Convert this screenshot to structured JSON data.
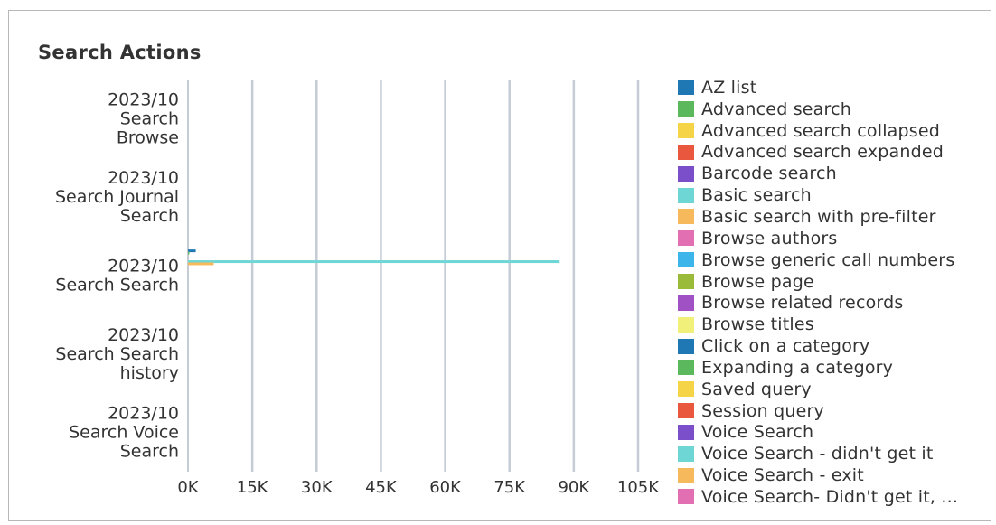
{
  "chart_data": {
    "type": "bar",
    "orientation": "horizontal",
    "title": "Search Actions",
    "categories": [
      [
        "2023/10",
        "Search",
        "Browse"
      ],
      [
        "2023/10",
        "Search Journal",
        "Search"
      ],
      [
        "2023/10",
        "Search Search"
      ],
      [
        "2023/10",
        "Search Search",
        "history"
      ],
      [
        "2023/10",
        "Search Voice",
        "Search"
      ]
    ],
    "xlim": [
      0,
      105000
    ],
    "x_ticks": [
      {
        "value": 0,
        "label": "0K"
      },
      {
        "value": 15000,
        "label": "15K"
      },
      {
        "value": 30000,
        "label": "30K"
      },
      {
        "value": 45000,
        "label": "45K"
      },
      {
        "value": 60000,
        "label": "60K"
      },
      {
        "value": 75000,
        "label": "75K"
      },
      {
        "value": 90000,
        "label": "90K"
      },
      {
        "value": 105000,
        "label": "105K"
      }
    ],
    "grid": true,
    "legend_position": "right",
    "series": [
      {
        "name": "AZ list",
        "color": "#1f77b4",
        "values": [
          0,
          0,
          1800,
          0,
          0
        ]
      },
      {
        "name": "Advanced search",
        "color": "#5cb85c",
        "values": [
          0,
          0,
          300,
          0,
          0
        ]
      },
      {
        "name": "Advanced search collapsed",
        "color": "#f5d547",
        "values": [
          0,
          0,
          0,
          0,
          0
        ]
      },
      {
        "name": "Advanced search expanded",
        "color": "#e8573e",
        "values": [
          0,
          0,
          0,
          0,
          0
        ]
      },
      {
        "name": "Barcode search",
        "color": "#7b4fc9",
        "values": [
          0,
          0,
          0,
          0,
          0
        ]
      },
      {
        "name": "Basic search",
        "color": "#6fd6d6",
        "values": [
          0,
          0,
          86700,
          0,
          0
        ]
      },
      {
        "name": "Basic search with pre-filter",
        "color": "#f6b95b",
        "values": [
          0,
          0,
          6000,
          0,
          0
        ]
      },
      {
        "name": "Browse authors",
        "color": "#e36fb3",
        "values": [
          0,
          0,
          0,
          0,
          0
        ]
      },
      {
        "name": "Browse generic call numbers",
        "color": "#3bb5ea",
        "values": [
          0,
          0,
          0,
          0,
          0
        ]
      },
      {
        "name": "Browse page",
        "color": "#9abb3a",
        "values": [
          0,
          0,
          0,
          0,
          0
        ]
      },
      {
        "name": "Browse related records",
        "color": "#a052c4",
        "values": [
          0,
          0,
          0,
          0,
          0
        ]
      },
      {
        "name": "Browse titles",
        "color": "#f0f07a",
        "values": [
          0,
          0,
          0,
          0,
          0
        ]
      },
      {
        "name": "Click on a category",
        "color": "#1f77b4",
        "values": [
          0,
          0,
          0,
          0,
          0
        ]
      },
      {
        "name": "Expanding a category",
        "color": "#5cb85c",
        "values": [
          0,
          0,
          0,
          0,
          0
        ]
      },
      {
        "name": "Saved query",
        "color": "#f5d547",
        "values": [
          0,
          0,
          0,
          0,
          0
        ]
      },
      {
        "name": "Session query",
        "color": "#e8573e",
        "values": [
          0,
          0,
          0,
          0,
          0
        ]
      },
      {
        "name": "Voice Search",
        "color": "#7b4fc9",
        "values": [
          0,
          0,
          0,
          0,
          0
        ]
      },
      {
        "name": "Voice Search - didn't get it",
        "color": "#6fd6d6",
        "values": [
          0,
          0,
          0,
          0,
          0
        ]
      },
      {
        "name": "Voice Search - exit",
        "color": "#f6b95b",
        "values": [
          0,
          0,
          0,
          0,
          0
        ]
      },
      {
        "name": "Voice Search- Didn't get it, ...",
        "color": "#e36fb3",
        "values": [
          0,
          0,
          0,
          0,
          0
        ]
      }
    ]
  }
}
